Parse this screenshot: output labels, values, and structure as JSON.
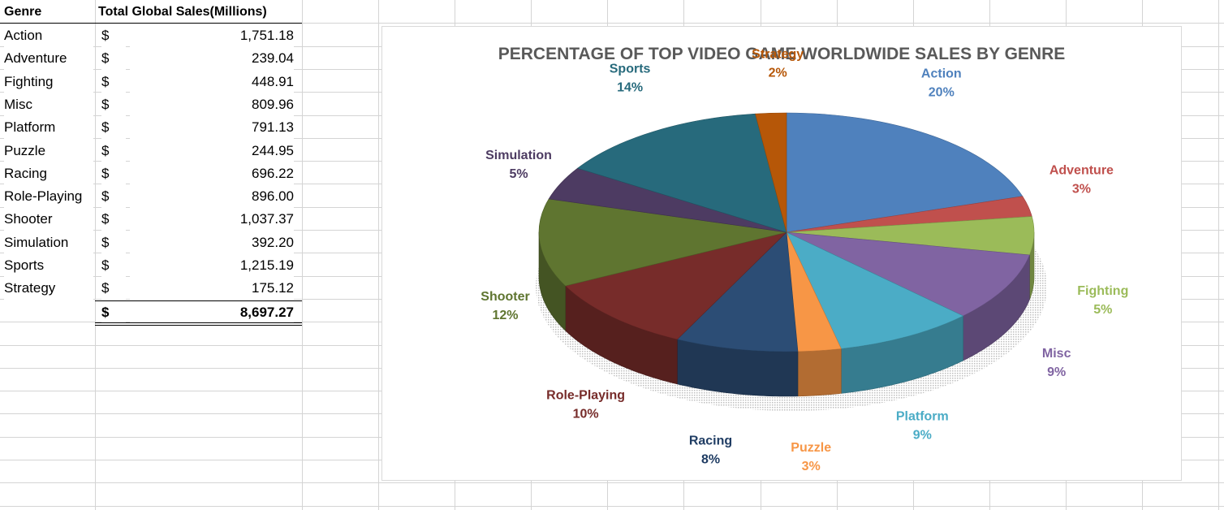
{
  "table": {
    "headers": [
      "Genre",
      "Total Global Sales(Millions)"
    ],
    "currency_symbol": "$",
    "rows": [
      {
        "genre": "Action",
        "sales": "1,751.18"
      },
      {
        "genre": "Adventure",
        "sales": "239.04"
      },
      {
        "genre": "Fighting",
        "sales": "448.91"
      },
      {
        "genre": "Misc",
        "sales": "809.96"
      },
      {
        "genre": "Platform",
        "sales": "791.13"
      },
      {
        "genre": "Puzzle",
        "sales": "244.95"
      },
      {
        "genre": "Racing",
        "sales": "696.22"
      },
      {
        "genre": "Role-Playing",
        "sales": "896.00"
      },
      {
        "genre": "Shooter",
        "sales": "1,037.37"
      },
      {
        "genre": "Simulation",
        "sales": "392.20"
      },
      {
        "genre": "Sports",
        "sales": "1,215.19"
      },
      {
        "genre": "Strategy",
        "sales": "175.12"
      }
    ],
    "total": "8,697.27"
  },
  "chart_data": {
    "type": "pie",
    "title": "PERCENTAGE OF TOP VIDEO GAME WORLDWIDE SALES BY GENRE",
    "three_d": true,
    "start_angle": "12 o'clock, clockwise",
    "categories": [
      "Action",
      "Adventure",
      "Fighting",
      "Misc",
      "Platform",
      "Puzzle",
      "Racing",
      "Role-Playing",
      "Shooter",
      "Simulation",
      "Sports",
      "Strategy"
    ],
    "values": [
      1751.18,
      239.04,
      448.91,
      809.96,
      791.13,
      244.95,
      696.22,
      896.0,
      1037.37,
      392.2,
      1215.19,
      175.12
    ],
    "percent_labels": [
      "20%",
      "3%",
      "5%",
      "9%",
      "9%",
      "3%",
      "8%",
      "10%",
      "12%",
      "5%",
      "14%",
      "2%"
    ],
    "colors": [
      "#4f81bd",
      "#c0504d",
      "#9bbb59",
      "#8064a2",
      "#4bacc6",
      "#f79646",
      "#2c4d75",
      "#772c2a",
      "#5f7530",
      "#4d3b62",
      "#276a7c",
      "#b65708"
    ],
    "label_colors": [
      "#4f81bd",
      "#c0504d",
      "#9bbb59",
      "#8064a2",
      "#4bacc6",
      "#f79646",
      "#1f3c63",
      "#772c2a",
      "#5f7530",
      "#4d3b62",
      "#276a7c",
      "#b65708"
    ],
    "legend": "none"
  }
}
